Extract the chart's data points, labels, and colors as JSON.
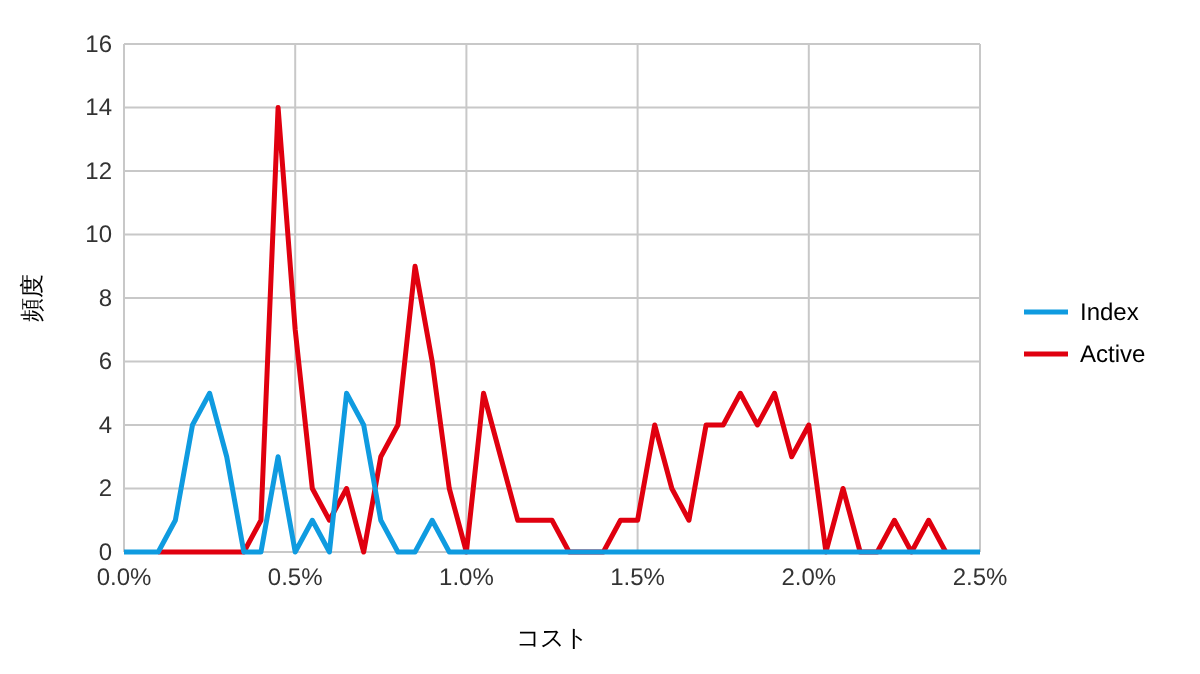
{
  "chart_data": {
    "type": "line",
    "xlabel": "コスト",
    "ylabel": "頻度",
    "x": [
      0,
      0.05,
      0.1,
      0.15,
      0.2,
      0.25,
      0.3,
      0.35,
      0.4,
      0.45,
      0.5,
      0.55,
      0.6,
      0.65,
      0.7,
      0.75,
      0.8,
      0.85,
      0.9,
      0.95,
      1,
      1.05,
      1.1,
      1.15,
      1.2,
      1.25,
      1.3,
      1.35,
      1.4,
      1.45,
      1.5,
      1.55,
      1.6,
      1.65,
      1.7,
      1.75,
      1.8,
      1.85,
      1.9,
      1.95,
      2,
      2.05,
      2.1,
      2.15,
      2.2,
      2.25,
      2.3,
      2.35,
      2.4,
      2.45,
      2.5
    ],
    "series": [
      {
        "name": "Index",
        "color": "#0f9be0",
        "values": [
          0,
          0,
          0,
          1,
          4,
          5,
          3,
          0,
          0,
          3,
          0,
          1,
          0,
          5,
          4,
          1,
          0,
          0,
          1,
          0,
          0,
          0,
          0,
          0,
          0,
          0,
          0,
          0,
          0,
          0,
          0,
          0,
          0,
          0,
          0,
          0,
          0,
          0,
          0,
          0,
          0,
          0,
          0,
          0,
          0,
          0,
          0,
          0,
          0,
          0,
          0
        ]
      },
      {
        "name": "Active",
        "color": "#e0000f",
        "values": [
          null,
          null,
          0,
          0,
          0,
          0,
          0,
          0,
          1,
          14,
          7,
          2,
          1,
          2,
          0,
          3,
          4,
          9,
          6,
          2,
          0,
          5,
          3,
          1,
          1,
          1,
          0,
          0,
          0,
          1,
          1,
          4,
          2,
          1,
          4,
          4,
          5,
          4,
          5,
          3,
          4,
          0,
          2,
          0,
          0,
          1,
          0,
          1,
          0,
          null,
          null
        ]
      }
    ],
    "xlim": [
      0,
      2.5
    ],
    "xticks": [
      {
        "value": 0,
        "label": "0.0%"
      },
      {
        "value": 0.5,
        "label": "0.5%"
      },
      {
        "value": 1,
        "label": "1.0%"
      },
      {
        "value": 1.5,
        "label": "1.5%"
      },
      {
        "value": 2,
        "label": "2.0%"
      },
      {
        "value": 2.5,
        "label": "2.5%"
      }
    ],
    "ylim": [
      0,
      16
    ],
    "yticks": [
      0,
      2,
      4,
      6,
      8,
      10,
      12,
      14,
      16
    ],
    "grid": true,
    "legend": "right",
    "line_style": "solid",
    "marker": "none"
  }
}
